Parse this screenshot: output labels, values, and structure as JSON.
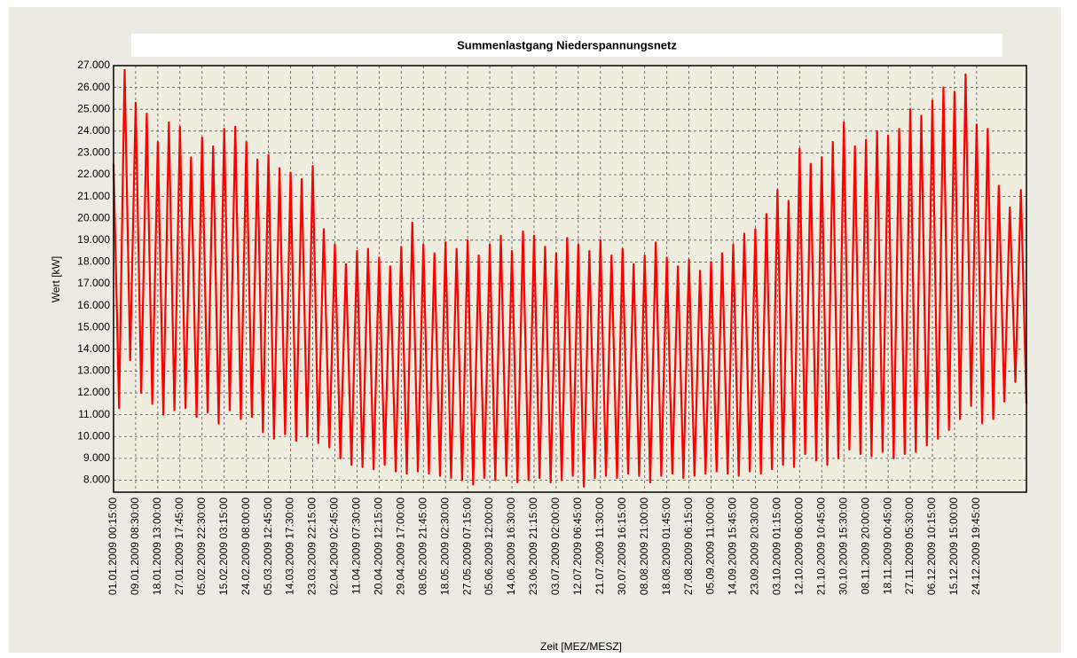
{
  "chart_data": {
    "type": "line",
    "title": "Summenlastgang  Niederspannungsnetz",
    "x_label": "Zeit [MEZ/MESZ]",
    "y_label": "Wert [kW]",
    "categories": [
      "01.01.2009 00:15:00",
      null,
      null,
      null,
      "09.01.2009 08:30:00",
      null,
      null,
      null,
      "18.01.2009 13:00:00",
      null,
      null,
      null,
      "27.01.2009 17:45:00",
      null,
      null,
      null,
      "05.02.2009 22:30:00",
      null,
      null,
      null,
      "15.02.2009 03:15:00",
      null,
      null,
      null,
      "24.02.2009 08:00:00",
      null,
      null,
      null,
      "05.03.2009 12:45:00",
      null,
      null,
      null,
      "14.03.2009 17:30:00",
      null,
      null,
      null,
      "23.03.2009 22:15:00",
      null,
      null,
      null,
      "02.04.2009 02:45:00",
      null,
      null,
      null,
      "11.04.2009 07:30:00",
      null,
      null,
      null,
      "20.04.2009 12:15:00",
      null,
      null,
      null,
      "29.04.2009 17:00:00",
      null,
      null,
      null,
      "08.05.2009 21:45:00",
      null,
      null,
      null,
      "18.05.2009 02:30:00",
      null,
      null,
      null,
      "27.05.2009 07:15:00",
      null,
      null,
      null,
      "05.06.2009 12:00:00",
      null,
      null,
      null,
      "14.06.2009 16:30:00",
      null,
      null,
      null,
      "23.06.2009 21:15:00",
      null,
      null,
      null,
      "03.07.2009 02:00:00",
      null,
      null,
      null,
      "12.07.2009 06:45:00",
      null,
      null,
      null,
      "21.07.2009 11:30:00",
      null,
      null,
      null,
      "30.07.2009 16:15:00",
      null,
      null,
      null,
      "08.08.2009 21:00:00",
      null,
      null,
      null,
      "18.08.2009 01:45:00",
      null,
      null,
      null,
      "27.08.2009 06:15:00",
      null,
      null,
      null,
      "05.09.2009 11:00:00",
      null,
      null,
      null,
      "14.09.2009 15:45:00",
      null,
      null,
      null,
      "23.09.2009 20:30:00",
      null,
      null,
      null,
      "03.10.2009 01:15:00",
      null,
      null,
      null,
      "12.10.2009 06:00:00",
      null,
      null,
      null,
      "21.10.2009 10:45:00",
      null,
      null,
      null,
      "30.10.2009 15:30:00",
      null,
      null,
      null,
      "08.11.2009 20:00:00",
      null,
      null,
      null,
      "18.11.2009 00:45:00",
      null,
      null,
      null,
      "27.11.2009 05:30:00",
      null,
      null,
      null,
      "06.12.2009 10:15:00",
      null,
      null,
      null,
      "15.12.2009 15:00:00",
      null,
      null,
      null,
      "24.12.2009 19:45:00",
      null,
      null,
      null,
      null,
      null,
      null,
      null,
      null,
      null
    ],
    "series": [
      {
        "name": "Summenlastgang",
        "color": "#ff0000",
        "values": [
          22500,
          11300,
          26800,
          13500,
          25300,
          12000,
          24800,
          11500,
          23500,
          11000,
          24400,
          11200,
          24200,
          11300,
          22800,
          10900,
          23700,
          11100,
          23300,
          10600,
          24100,
          11200,
          24200,
          10800,
          23500,
          10900,
          22700,
          10200,
          22900,
          9900,
          22300,
          10100,
          22100,
          9800,
          21800,
          10000,
          22400,
          9700,
          19500,
          9500,
          18800,
          9000,
          17900,
          8700,
          18500,
          8600,
          18600,
          8500,
          18200,
          8700,
          17800,
          8400,
          18700,
          8300,
          19800,
          8400,
          18800,
          8300,
          18400,
          8200,
          18900,
          8100,
          18600,
          8000,
          19000,
          7800,
          18300,
          8100,
          18800,
          8000,
          19200,
          8200,
          18500,
          7900,
          19400,
          8000,
          19200,
          8100,
          18700,
          7900,
          18400,
          8000,
          19100,
          8200,
          18800,
          7700,
          18500,
          8100,
          19000,
          8200,
          18300,
          8100,
          18600,
          8300,
          17900,
          8200,
          18300,
          7900,
          18900,
          8200,
          18200,
          8300,
          17800,
          8100,
          18100,
          8200,
          17600,
          8300,
          18000,
          8400,
          18400,
          8300,
          18800,
          8200,
          19300,
          8400,
          19500,
          8300,
          20200,
          8500,
          21300,
          8700,
          20800,
          8600,
          23200,
          9200,
          22500,
          8900,
          22800,
          8700,
          23500,
          9000,
          24400,
          9400,
          23300,
          9200,
          23600,
          9100,
          24000,
          9300,
          23800,
          9000,
          24100,
          9200,
          25000,
          9300,
          24700,
          9600,
          25400,
          9900,
          26000,
          10300,
          25800,
          10800,
          26600,
          11400,
          24300,
          10600,
          24100,
          10800,
          21500,
          11600,
          20500,
          12500,
          21300,
          11500
        ]
      }
    ],
    "ylim": [
      7450,
      27000
    ],
    "yticks": [
      {
        "value": 8000,
        "label": "8.000"
      },
      {
        "value": 9000,
        "label": "9.000"
      },
      {
        "value": 10000,
        "label": "10.000"
      },
      {
        "value": 11000,
        "label": "11.000"
      },
      {
        "value": 12000,
        "label": "12.000"
      },
      {
        "value": 13000,
        "label": "13.000"
      },
      {
        "value": 14000,
        "label": "14.000"
      },
      {
        "value": 15000,
        "label": "15.000"
      },
      {
        "value": 16000,
        "label": "16.000"
      },
      {
        "value": 17000,
        "label": "17.000"
      },
      {
        "value": 18000,
        "label": "18.000"
      },
      {
        "value": 19000,
        "label": "19.000"
      },
      {
        "value": 20000,
        "label": "20.000"
      },
      {
        "value": 21000,
        "label": "21.000"
      },
      {
        "value": 22000,
        "label": "22.000"
      },
      {
        "value": 23000,
        "label": "23.000"
      },
      {
        "value": 24000,
        "label": "24.000"
      },
      {
        "value": 25000,
        "label": "25.000"
      },
      {
        "value": 26000,
        "label": "26.000"
      },
      {
        "value": 27000,
        "label": "27.000"
      }
    ],
    "grid": true
  }
}
